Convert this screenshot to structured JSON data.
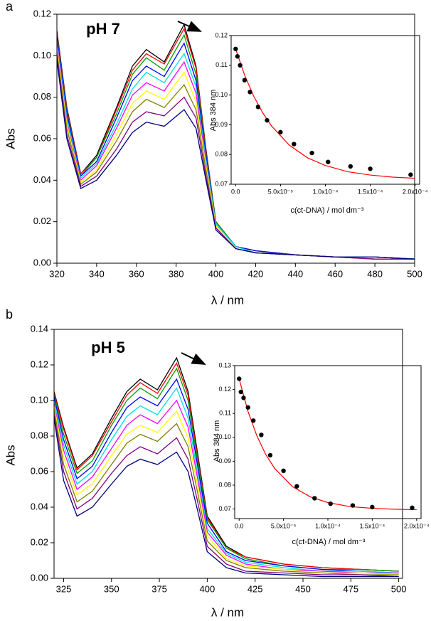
{
  "chart_data": [
    {
      "type": "line",
      "panel_label": "a",
      "annotation": "pH 7",
      "xlabel": "λ / nm",
      "ylabel": "Abs",
      "xlim": [
        320,
        500
      ],
      "ylim": [
        0,
        0.12
      ],
      "xticks": [
        320,
        340,
        360,
        380,
        400,
        420,
        440,
        460,
        480,
        500
      ],
      "yticks": [
        {
          "value": 0,
          "label": "0.00"
        },
        {
          "value": 0.02,
          "label": "0.02"
        },
        {
          "value": 0.04,
          "label": "0.04"
        },
        {
          "value": 0.06,
          "label": "0.06"
        },
        {
          "value": 0.08,
          "label": "0.08"
        },
        {
          "value": 0.1,
          "label": "0.10"
        },
        {
          "value": 0.12,
          "label": "0.12"
        }
      ],
      "x": [
        320,
        325,
        332,
        340,
        350,
        358,
        365,
        374,
        384,
        390,
        395,
        400,
        410,
        420,
        440,
        460,
        480,
        500
      ],
      "series": [
        {
          "color": "#000000",
          "values": [
            0.112,
            0.075,
            0.043,
            0.052,
            0.075,
            0.095,
            0.103,
            0.097,
            0.115,
            0.095,
            0.055,
            0.02,
            0.008,
            0.006,
            0.004,
            0.003,
            0.003,
            0.002
          ]
        },
        {
          "color": "#ff0000",
          "values": [
            0.111,
            0.074,
            0.043,
            0.051,
            0.074,
            0.093,
            0.101,
            0.096,
            0.113,
            0.094,
            0.054,
            0.02,
            0.008,
            0.006,
            0.004,
            0.003,
            0.003,
            0.002
          ]
        },
        {
          "color": "#00a000",
          "values": [
            0.11,
            0.073,
            0.042,
            0.051,
            0.072,
            0.091,
            0.099,
            0.093,
            0.11,
            0.091,
            0.053,
            0.02,
            0.008,
            0.006,
            0.004,
            0.003,
            0.003,
            0.002
          ]
        },
        {
          "color": "#0000ff",
          "values": [
            0.109,
            0.072,
            0.042,
            0.049,
            0.07,
            0.088,
            0.095,
            0.09,
            0.106,
            0.088,
            0.052,
            0.019,
            0.008,
            0.006,
            0.004,
            0.003,
            0.003,
            0.002
          ]
        },
        {
          "color": "#00e0e0",
          "values": [
            0.107,
            0.07,
            0.041,
            0.048,
            0.067,
            0.084,
            0.092,
            0.087,
            0.101,
            0.085,
            0.05,
            0.019,
            0.008,
            0.005,
            0.004,
            0.003,
            0.003,
            0.002
          ]
        },
        {
          "color": "#ff00ff",
          "values": [
            0.106,
            0.068,
            0.04,
            0.047,
            0.065,
            0.081,
            0.087,
            0.083,
            0.097,
            0.082,
            0.048,
            0.018,
            0.007,
            0.005,
            0.004,
            0.003,
            0.002,
            0.002
          ]
        },
        {
          "color": "#ffff00",
          "values": [
            0.104,
            0.067,
            0.039,
            0.045,
            0.062,
            0.077,
            0.083,
            0.079,
            0.092,
            0.078,
            0.047,
            0.018,
            0.007,
            0.005,
            0.004,
            0.003,
            0.002,
            0.002
          ]
        },
        {
          "color": "#808000",
          "values": [
            0.102,
            0.065,
            0.038,
            0.044,
            0.059,
            0.073,
            0.079,
            0.075,
            0.086,
            0.074,
            0.045,
            0.017,
            0.007,
            0.005,
            0.004,
            0.003,
            0.002,
            0.002
          ]
        },
        {
          "color": "#800080",
          "values": [
            0.1,
            0.062,
            0.037,
            0.042,
            0.055,
            0.068,
            0.073,
            0.071,
            0.08,
            0.07,
            0.042,
            0.017,
            0.007,
            0.005,
            0.004,
            0.003,
            0.002,
            0.002
          ]
        },
        {
          "color": "#000080",
          "values": [
            0.098,
            0.06,
            0.036,
            0.04,
            0.052,
            0.063,
            0.068,
            0.066,
            0.074,
            0.065,
            0.04,
            0.016,
            0.007,
            0.005,
            0.004,
            0.003,
            0.003,
            0.002
          ]
        }
      ]
    },
    {
      "type": "scatter",
      "xlabel": "c(ct-DNA) / mol dm⁻³",
      "ylabel": "Abs 384 nm",
      "xlim": [
        -5e-06,
        0.000205
      ],
      "ylim": [
        0.07,
        0.12
      ],
      "xticks": [
        {
          "value": 0,
          "label": "0.0"
        },
        {
          "value": 5e-05,
          "label": "5.0x10⁻⁵"
        },
        {
          "value": 0.0001,
          "label": "1.0x10⁻⁴"
        },
        {
          "value": 0.00015,
          "label": "1.5x10⁻⁴"
        },
        {
          "value": 0.0002,
          "label": "2.0x10⁻⁴"
        }
      ],
      "yticks": [
        {
          "value": 0.07,
          "label": "0.07"
        },
        {
          "value": 0.08,
          "label": "0.08"
        },
        {
          "value": 0.09,
          "label": "0.09"
        },
        {
          "value": 0.1,
          "label": "0.10"
        },
        {
          "value": 0.11,
          "label": "0.11"
        },
        {
          "value": 0.12,
          "label": "0.12"
        }
      ],
      "series": [
        {
          "type": "line",
          "color": "#ff0000",
          "x": [
            0,
            1e-05,
            2e-05,
            3e-05,
            4e-05,
            6e-05,
            8e-05,
            0.0001,
            0.000125,
            0.00015,
            0.000175,
            0.0002
          ],
          "values": [
            0.1155,
            0.1067,
            0.0997,
            0.0941,
            0.0896,
            0.0831,
            0.0789,
            0.0763,
            0.0742,
            0.0731,
            0.0724,
            0.072
          ]
        },
        {
          "type": "scatter",
          "color": "#000000",
          "x": [
            0,
            2e-06,
            5e-06,
            1e-05,
            1.6e-05,
            2.5e-05,
            3.5e-05,
            5e-05,
            6.5e-05,
            8.5e-05,
            0.000103,
            0.000128,
            0.00015,
            0.000195
          ],
          "values": [
            0.1155,
            0.113,
            0.11,
            0.105,
            0.101,
            0.096,
            0.0915,
            0.0875,
            0.0835,
            0.0805,
            0.0775,
            0.076,
            0.0752,
            0.0732
          ]
        }
      ]
    },
    {
      "type": "line",
      "panel_label": "b",
      "annotation": "pH 5",
      "xlabel": "λ / nm",
      "ylabel": "Abs",
      "xlim": [
        320,
        502
      ],
      "ylim": [
        0,
        0.14
      ],
      "xticks": [
        325,
        350,
        375,
        400,
        425,
        450,
        475,
        500
      ],
      "yticks": [
        {
          "value": 0,
          "label": "0.00"
        },
        {
          "value": 0.02,
          "label": "0.02"
        },
        {
          "value": 0.04,
          "label": "0.04"
        },
        {
          "value": 0.06,
          "label": "0.06"
        },
        {
          "value": 0.08,
          "label": "0.08"
        },
        {
          "value": 0.1,
          "label": "0.10"
        },
        {
          "value": 0.12,
          "label": "0.12"
        },
        {
          "value": 0.14,
          "label": "0.14"
        }
      ],
      "x": [
        320,
        325,
        332,
        340,
        350,
        358,
        365,
        374,
        384,
        390,
        395,
        400,
        410,
        420,
        440,
        460,
        480,
        500
      ],
      "series": [
        {
          "color": "#000000",
          "values": [
            0.105,
            0.085,
            0.062,
            0.07,
            0.09,
            0.105,
            0.112,
            0.106,
            0.124,
            0.105,
            0.07,
            0.035,
            0.018,
            0.012,
            0.008,
            0.006,
            0.005,
            0.004
          ]
        },
        {
          "color": "#ff0000",
          "values": [
            0.104,
            0.084,
            0.061,
            0.069,
            0.088,
            0.103,
            0.11,
            0.104,
            0.121,
            0.103,
            0.068,
            0.034,
            0.017,
            0.012,
            0.008,
            0.006,
            0.005,
            0.004
          ]
        },
        {
          "color": "#00a000",
          "values": [
            0.103,
            0.081,
            0.059,
            0.066,
            0.086,
            0.1,
            0.107,
            0.101,
            0.118,
            0.1,
            0.066,
            0.033,
            0.017,
            0.011,
            0.007,
            0.005,
            0.005,
            0.004
          ]
        },
        {
          "color": "#0000ff",
          "values": [
            0.102,
            0.078,
            0.056,
            0.063,
            0.082,
            0.096,
            0.102,
            0.097,
            0.112,
            0.095,
            0.063,
            0.031,
            0.015,
            0.01,
            0.007,
            0.005,
            0.004,
            0.003
          ]
        },
        {
          "color": "#00e0e0",
          "values": [
            0.1,
            0.075,
            0.053,
            0.06,
            0.078,
            0.091,
            0.097,
            0.092,
            0.107,
            0.09,
            0.059,
            0.028,
            0.014,
            0.009,
            0.006,
            0.004,
            0.004,
            0.003
          ]
        },
        {
          "color": "#ff00ff",
          "values": [
            0.098,
            0.072,
            0.05,
            0.057,
            0.073,
            0.086,
            0.092,
            0.087,
            0.1,
            0.085,
            0.056,
            0.026,
            0.013,
            0.008,
            0.005,
            0.004,
            0.003,
            0.003
          ]
        },
        {
          "color": "#ffff00",
          "values": [
            0.097,
            0.068,
            0.047,
            0.053,
            0.069,
            0.081,
            0.086,
            0.082,
            0.094,
            0.079,
            0.052,
            0.024,
            0.011,
            0.007,
            0.005,
            0.003,
            0.003,
            0.002
          ]
        },
        {
          "color": "#808000",
          "values": [
            0.095,
            0.064,
            0.043,
            0.049,
            0.064,
            0.076,
            0.081,
            0.077,
            0.087,
            0.074,
            0.048,
            0.021,
            0.01,
            0.006,
            0.004,
            0.003,
            0.002,
            0.002
          ]
        },
        {
          "color": "#800080",
          "values": [
            0.092,
            0.06,
            0.039,
            0.045,
            0.059,
            0.069,
            0.074,
            0.07,
            0.079,
            0.067,
            0.043,
            0.018,
            0.008,
            0.004,
            0.003,
            0.002,
            0.002,
            0.001
          ]
        },
        {
          "color": "#000080",
          "values": [
            0.09,
            0.055,
            0.035,
            0.04,
            0.053,
            0.063,
            0.067,
            0.064,
            0.071,
            0.06,
            0.038,
            0.015,
            0.006,
            0.003,
            0.002,
            0.001,
            0.001,
            0.001
          ]
        }
      ]
    },
    {
      "type": "scatter",
      "xlabel": "c(ct-DNA) / mol dm⁻³",
      "ylabel": "Abs 384 nm",
      "xlim": [
        -5e-06,
        0.000205
      ],
      "ylim": [
        0.066,
        0.13
      ],
      "xticks": [
        {
          "value": 0,
          "label": "0.0"
        },
        {
          "value": 5e-05,
          "label": "5.0x10⁻⁵"
        },
        {
          "value": 0.0001,
          "label": "1.0x10⁻⁴"
        },
        {
          "value": 0.00015,
          "label": "1.5x10⁻⁴"
        },
        {
          "value": 0.0002,
          "label": "2.0x10⁻⁴"
        }
      ],
      "yticks": [
        {
          "value": 0.07,
          "label": "0.07"
        },
        {
          "value": 0.08,
          "label": "0.08"
        },
        {
          "value": 0.09,
          "label": "0.09"
        },
        {
          "value": 0.1,
          "label": "0.10"
        },
        {
          "value": 0.11,
          "label": "0.11"
        },
        {
          "value": 0.12,
          "label": "0.12"
        },
        {
          "value": 0.13,
          "label": "0.13"
        }
      ],
      "series": [
        {
          "type": "line",
          "color": "#ff0000",
          "x": [
            0,
            1e-05,
            2e-05,
            3e-05,
            4e-05,
            6e-05,
            8e-05,
            0.0001,
            0.000125,
            0.00015,
            0.000175,
            0.0002
          ],
          "values": [
            0.1245,
            0.1108,
            0.1006,
            0.0928,
            0.087,
            0.0794,
            0.0751,
            0.0727,
            0.071,
            0.0703,
            0.0699,
            0.0697
          ]
        },
        {
          "type": "scatter",
          "color": "#000000",
          "x": [
            0,
            2e-06,
            5e-06,
            1e-05,
            1.6e-05,
            2.5e-05,
            3.5e-05,
            5e-05,
            6.5e-05,
            8.5e-05,
            0.000103,
            0.000128,
            0.00015,
            0.000195
          ],
          "values": [
            0.1245,
            0.119,
            0.1165,
            0.1125,
            0.107,
            0.101,
            0.0925,
            0.086,
            0.0795,
            0.0745,
            0.0722,
            0.0715,
            0.0708,
            0.0705
          ]
        }
      ]
    }
  ]
}
